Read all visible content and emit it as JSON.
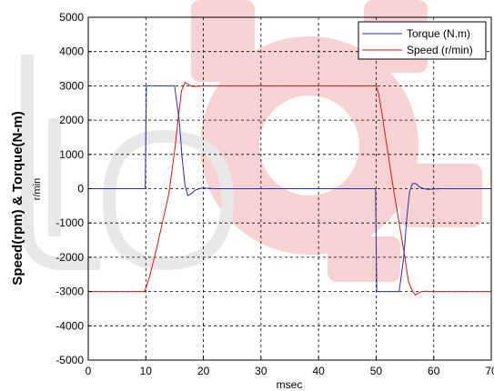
{
  "chart_data": {
    "type": "line",
    "xlabel": "msec",
    "ylabel_outer": "Speed(rpm) & Torque(N-m)",
    "ylabel_inner": "r/min",
    "xlim": [
      0,
      70
    ],
    "ylim": [
      -5000,
      5000
    ],
    "x_ticks": [
      0,
      10,
      20,
      30,
      40,
      50,
      60,
      70
    ],
    "y_ticks": [
      -5000,
      -4000,
      -3000,
      -2000,
      -1000,
      0,
      1000,
      2000,
      3000,
      4000,
      5000
    ],
    "grid": true,
    "legend_position": "top-right",
    "series": [
      {
        "name": "Torque (N.m)",
        "color": "#2b2bb8",
        "x": [
          0,
          9.9,
          10.0,
          10.1,
          11,
          12,
          13,
          14,
          15,
          15.8,
          16.3,
          16.8,
          17.3,
          17.9,
          18.5,
          19.3,
          20,
          22,
          30,
          40,
          49.9,
          50.0,
          50.1,
          51,
          52,
          53,
          54,
          54.8,
          55.3,
          55.8,
          56.3,
          56.9,
          57.5,
          58.3,
          59,
          61,
          70
        ],
        "y": [
          0,
          0,
          1500,
          3000,
          3000,
          3000,
          3000,
          3000,
          3000,
          2000,
          900,
          100,
          -200,
          -150,
          -50,
          0,
          20,
          0,
          0,
          0,
          0,
          -1500,
          -3000,
          -3000,
          -3000,
          -3000,
          -3000,
          -2000,
          -900,
          -100,
          150,
          150,
          50,
          0,
          -20,
          0,
          0
        ]
      },
      {
        "name": "Speed (r/min)",
        "color": "#e01515",
        "x": [
          0,
          9.8,
          10.6,
          11.5,
          12,
          13,
          14,
          15,
          15.6,
          16.2,
          16.8,
          17.3,
          17.9,
          18.5,
          19.3,
          20,
          25,
          30,
          40,
          50,
          50.4,
          51,
          52,
          53,
          54,
          55,
          55.6,
          56.2,
          56.8,
          57.3,
          57.9,
          58.5,
          59.3,
          60,
          65,
          70
        ],
        "y": [
          -3000,
          -3000,
          -2600,
          -2000,
          -1650,
          -900,
          -150,
          1100,
          2000,
          2850,
          3100,
          3050,
          2990,
          2980,
          2990,
          3000,
          3000,
          3000,
          3000,
          3000,
          2800,
          2200,
          1100,
          0,
          -1000,
          -2000,
          -2700,
          -2950,
          -3100,
          -3050,
          -3000,
          -2990,
          -3000,
          -3000,
          -3000,
          -3000
        ]
      }
    ]
  }
}
